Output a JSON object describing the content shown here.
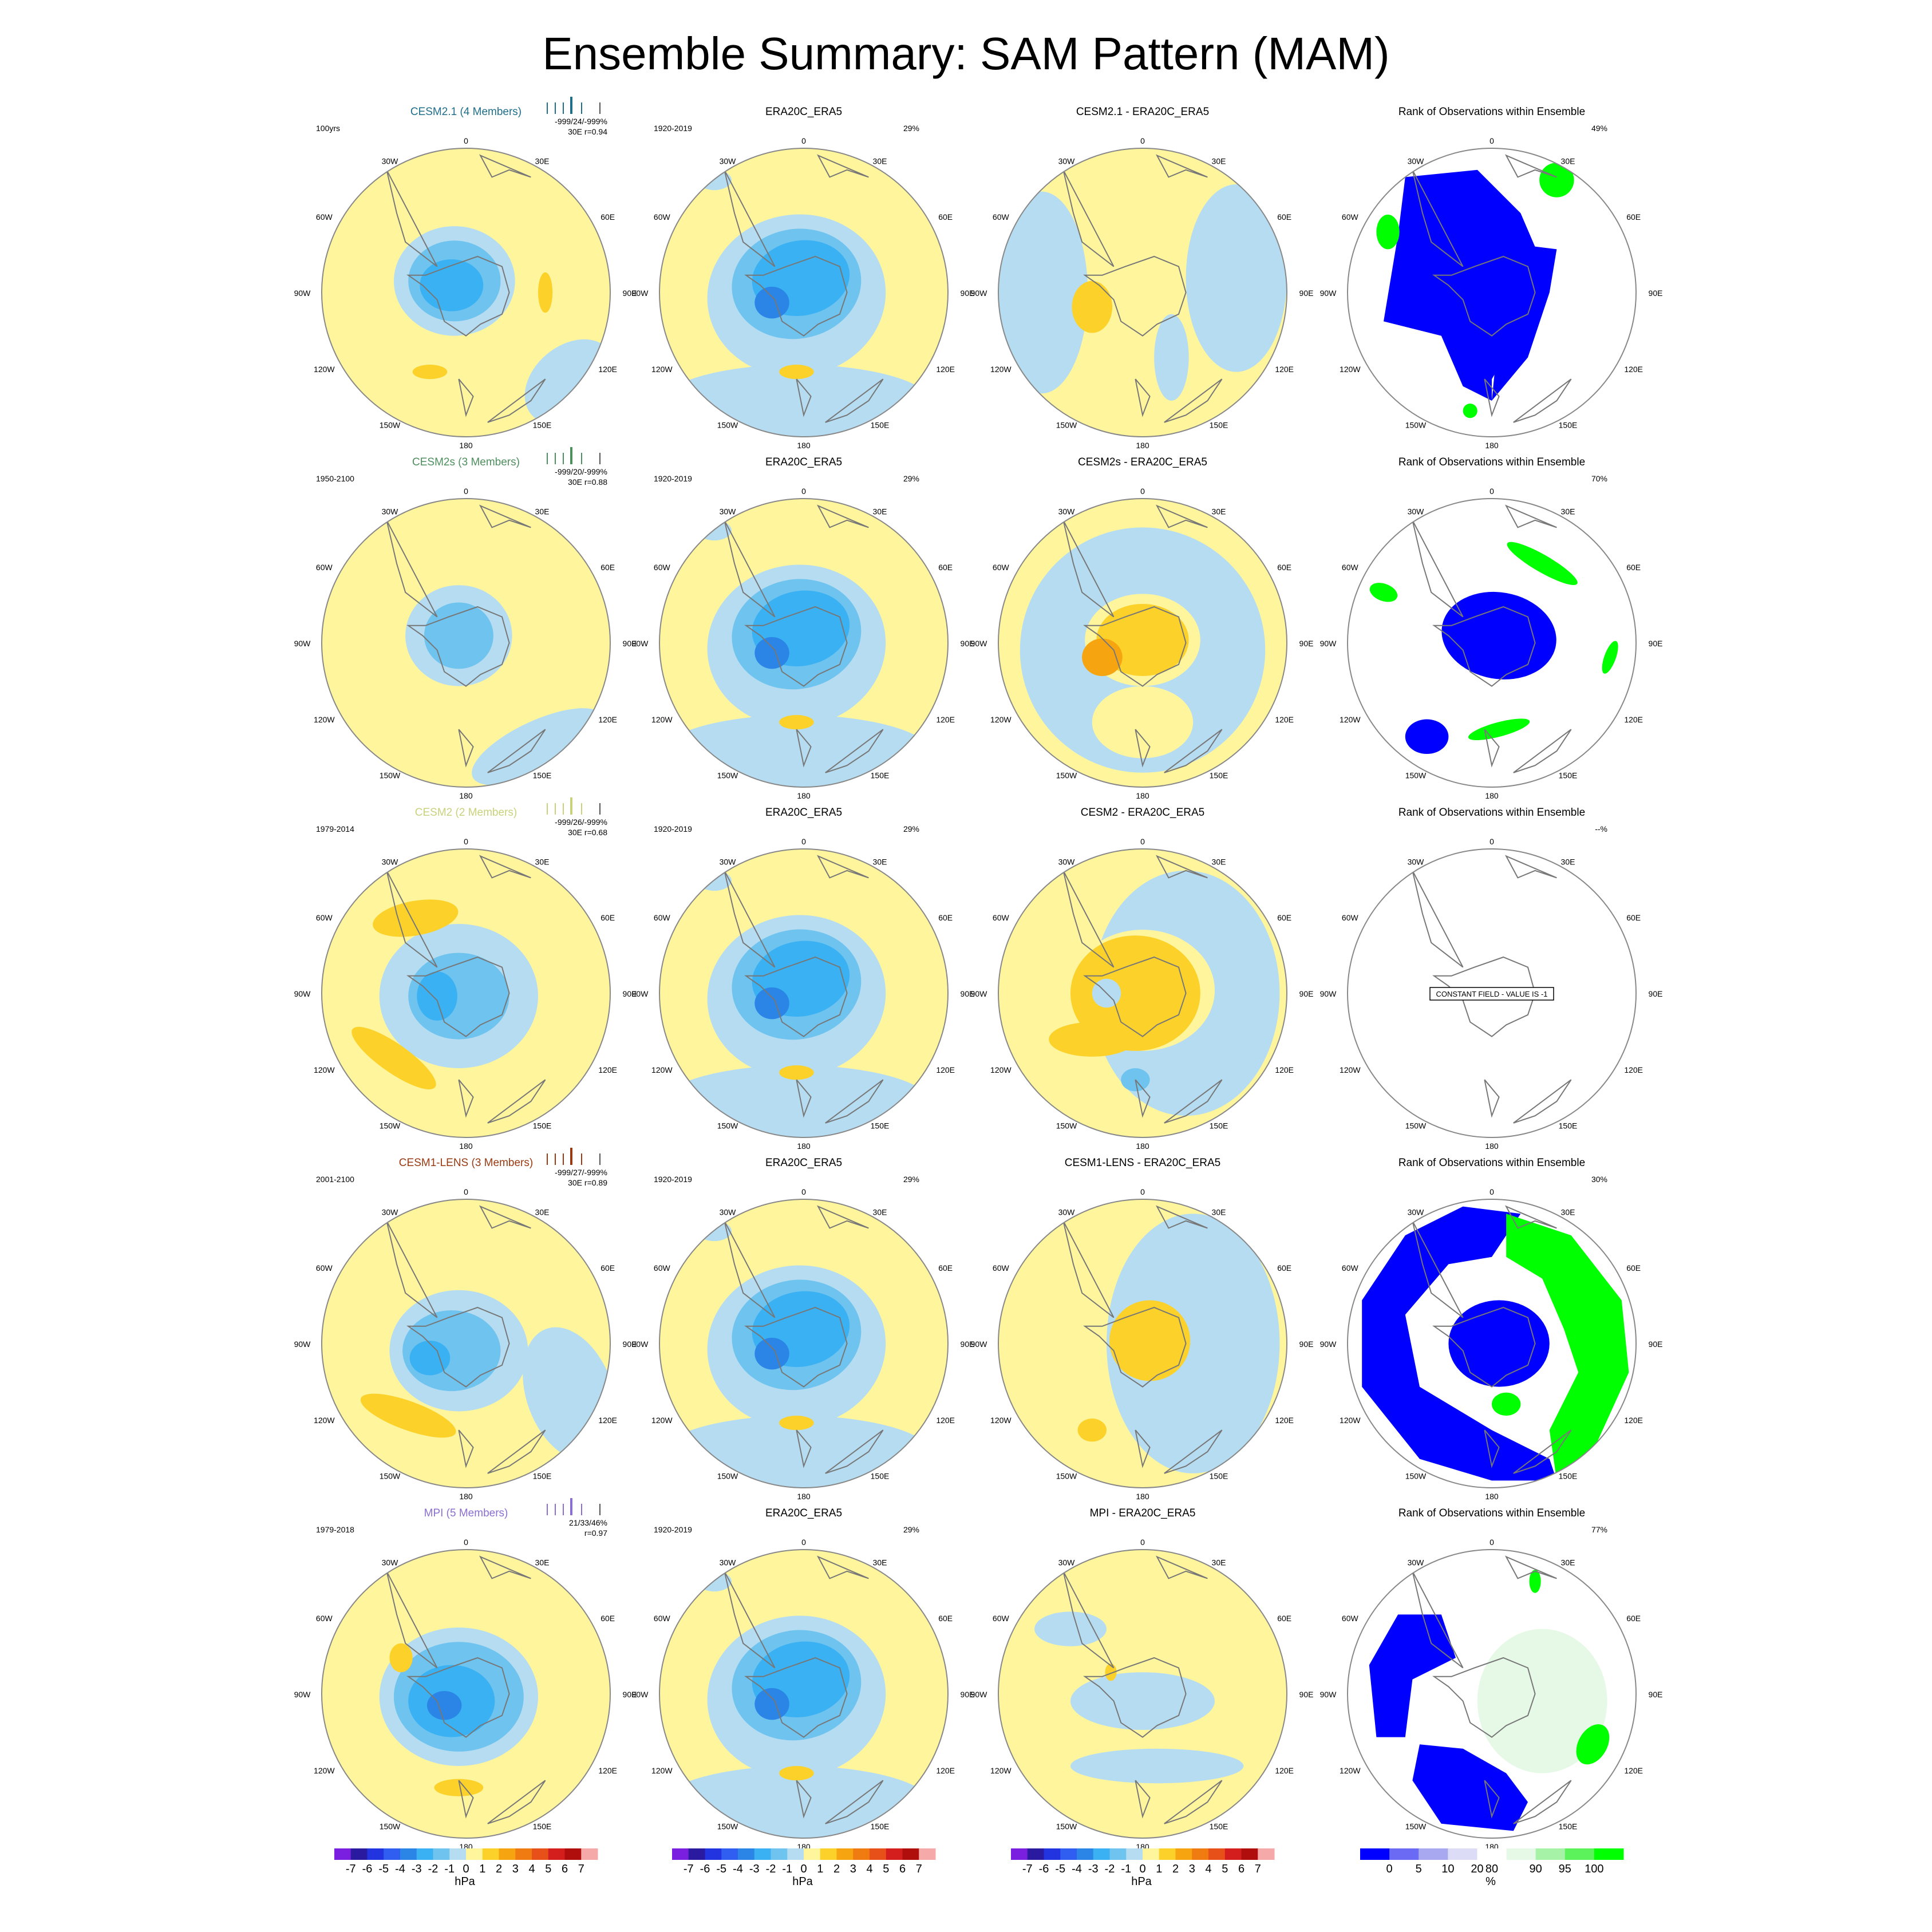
{
  "chart_data": {
    "type": "map-panels",
    "title": "Ensemble Summary: SAM Pattern (MAM)",
    "projection": "south-polar-stereographic",
    "lon_labels": [
      "0",
      "30E",
      "60E",
      "90E",
      "120E",
      "150E",
      "180",
      "150W",
      "120W",
      "90W",
      "60W",
      "30W"
    ],
    "colors": {
      "pos1": "#fff59d",
      "pos2": "#fcd12a",
      "pos3": "#f6a410",
      "neg1": "#b5dcf1",
      "neg2": "#6ec3ef",
      "neg3": "#3ab1f2",
      "neg4": "#2b85e6",
      "rank_low": "#0000ff",
      "rank_high": "#00ff00",
      "rank_light": "#e6f9e6",
      "coast": "#777777"
    },
    "panels": [
      {
        "row": 0,
        "col": 0,
        "title": "CESM2.1 (4 Members)",
        "title_color": "#1f6f8b",
        "period": "100yrs",
        "stats1": "-999/24/-999%",
        "stats2": "30E r=0.94",
        "pattern": "model",
        "legend_color": "#1f6f8b"
      },
      {
        "row": 0,
        "col": 1,
        "title": "ERA20C_ERA5",
        "title_color": "#000000",
        "period": "1920-2019",
        "pct": "29%",
        "pattern": "obs"
      },
      {
        "row": 0,
        "col": 2,
        "title": "CESM2.1 - ERA20C_ERA5",
        "title_color": "#000000",
        "pattern": "diff-a"
      },
      {
        "row": 0,
        "col": 3,
        "title": "Rank of Observations within Ensemble",
        "title_color": "#000000",
        "pct": "49%",
        "pattern": "rank-a"
      },
      {
        "row": 1,
        "col": 0,
        "title": "CESM2s (3 Members)",
        "title_color": "#4e8f5e",
        "period": "1950-2100",
        "stats1": "-999/20/-999%",
        "stats2": "30E r=0.88",
        "pattern": "model-weak",
        "legend_color": "#4e8f5e"
      },
      {
        "row": 1,
        "col": 1,
        "title": "ERA20C_ERA5",
        "title_color": "#000000",
        "period": "1920-2019",
        "pct": "29%",
        "pattern": "obs"
      },
      {
        "row": 1,
        "col": 2,
        "title": "CESM2s - ERA20C_ERA5",
        "title_color": "#000000",
        "pattern": "diff-b"
      },
      {
        "row": 1,
        "col": 3,
        "title": "Rank of Observations within Ensemble",
        "title_color": "#000000",
        "pct": "70%",
        "pattern": "rank-b"
      },
      {
        "row": 2,
        "col": 0,
        "title": "CESM2 (2 Members)",
        "title_color": "#c9d27a",
        "period": "1979-2014",
        "stats1": "-999/26/-999%",
        "stats2": "30E r=0.68",
        "pattern": "model-c",
        "legend_color": "#c9d27a"
      },
      {
        "row": 2,
        "col": 1,
        "title": "ERA20C_ERA5",
        "title_color": "#000000",
        "period": "1920-2019",
        "pct": "29%",
        "pattern": "obs"
      },
      {
        "row": 2,
        "col": 2,
        "title": "CESM2 - ERA20C_ERA5",
        "title_color": "#000000",
        "pattern": "diff-c"
      },
      {
        "row": 2,
        "col": 3,
        "title": "Rank of Observations within Ensemble",
        "title_color": "#000000",
        "pct": "--%",
        "pattern": "rank-empty",
        "note": "CONSTANT FIELD - VALUE IS -1"
      },
      {
        "row": 3,
        "col": 0,
        "title": "CESM1-LENS (3 Members)",
        "title_color": "#9a3a12",
        "period": "2001-2100",
        "stats1": "-999/27/-999%",
        "stats2": "30E r=0.89",
        "pattern": "model-d",
        "legend_color": "#9a3a12"
      },
      {
        "row": 3,
        "col": 1,
        "title": "ERA20C_ERA5",
        "title_color": "#000000",
        "period": "1920-2019",
        "pct": "29%",
        "pattern": "obs"
      },
      {
        "row": 3,
        "col": 2,
        "title": "CESM1-LENS - ERA20C_ERA5",
        "title_color": "#000000",
        "pattern": "diff-d"
      },
      {
        "row": 3,
        "col": 3,
        "title": "Rank of Observations within Ensemble",
        "title_color": "#000000",
        "pct": "30%",
        "pattern": "rank-d"
      },
      {
        "row": 4,
        "col": 0,
        "title": "MPI (5 Members)",
        "title_color": "#8a6fd0",
        "period": "1979-2018",
        "stats1": "21/33/46%",
        "stats2": "r=0.97",
        "pattern": "model-e",
        "legend_color": "#8a6fd0"
      },
      {
        "row": 4,
        "col": 1,
        "title": "ERA20C_ERA5",
        "title_color": "#000000",
        "period": "1920-2019",
        "pct": "29%",
        "pattern": "obs"
      },
      {
        "row": 4,
        "col": 2,
        "title": "MPI - ERA20C_ERA5",
        "title_color": "#000000",
        "pattern": "diff-e"
      },
      {
        "row": 4,
        "col": 3,
        "title": "Rank of Observations within Ensemble",
        "title_color": "#000000",
        "pct": "77%",
        "pattern": "rank-e"
      }
    ],
    "colorbars": [
      {
        "label": "hPa",
        "ticks": [
          "-7",
          "-6",
          "-5",
          "-4",
          "-3",
          "-2",
          "-1",
          "0",
          "1",
          "2",
          "3",
          "4",
          "5",
          "6",
          "7"
        ],
        "colors": [
          "#7a1fe0",
          "#2a1aa0",
          "#2233e0",
          "#2f5ef0",
          "#2b85e6",
          "#3ab1f2",
          "#6ec3ef",
          "#b5dcf1",
          "#fff59d",
          "#fcd12a",
          "#f6a410",
          "#f07b10",
          "#e8501a",
          "#d41e1e",
          "#b00d0d",
          "#f5a9a9"
        ]
      },
      {
        "label": "hPa",
        "ticks": [
          "-7",
          "-6",
          "-5",
          "-4",
          "-3",
          "-2",
          "-1",
          "0",
          "1",
          "2",
          "3",
          "4",
          "5",
          "6",
          "7"
        ],
        "colors": [
          "#7a1fe0",
          "#2a1aa0",
          "#2233e0",
          "#2f5ef0",
          "#2b85e6",
          "#3ab1f2",
          "#6ec3ef",
          "#b5dcf1",
          "#fff59d",
          "#fcd12a",
          "#f6a410",
          "#f07b10",
          "#e8501a",
          "#d41e1e",
          "#b00d0d",
          "#f5a9a9"
        ]
      },
      {
        "label": "hPa",
        "ticks": [
          "-7",
          "-6",
          "-5",
          "-4",
          "-3",
          "-2",
          "-1",
          "0",
          "1",
          "2",
          "3",
          "4",
          "5",
          "6",
          "7"
        ],
        "colors": [
          "#7a1fe0",
          "#2a1aa0",
          "#2233e0",
          "#2f5ef0",
          "#2b85e6",
          "#3ab1f2",
          "#6ec3ef",
          "#b5dcf1",
          "#fff59d",
          "#fcd12a",
          "#f6a410",
          "#f07b10",
          "#e8501a",
          "#d41e1e",
          "#b00d0d",
          "#f5a9a9"
        ]
      },
      {
        "label": "%",
        "ticks": [
          "0",
          "5",
          "10",
          "20",
          "80",
          "90",
          "95",
          "100"
        ],
        "colors": [
          "#0000ff",
          "#6a6af5",
          "#a8a8f0",
          "#dcdcf7",
          "#ffffff",
          "#e6f9e6",
          "#a6f2a6",
          "#5cf25c",
          "#00ff00"
        ]
      }
    ]
  }
}
